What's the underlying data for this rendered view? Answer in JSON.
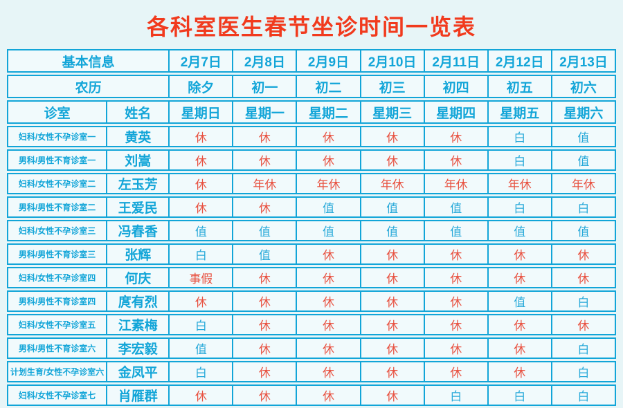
{
  "title": "各科室医生春节坐诊时间一览表",
  "table": {
    "header": {
      "basic_info_label": "基本信息",
      "lunar_label": "农历",
      "room_label": "诊室",
      "name_label": "姓名",
      "dates": [
        "2月7日",
        "2月8日",
        "2月9日",
        "2月10日",
        "2月11日",
        "2月12日",
        "2月13日"
      ],
      "lunar_days": [
        "除夕",
        "初一",
        "初二",
        "初三",
        "初四",
        "初五",
        "初六"
      ],
      "weekdays": [
        "星期日",
        "星期一",
        "星期二",
        "星期三",
        "星期四",
        "星期五",
        "星期六"
      ]
    },
    "rows": [
      {
        "room": "妇科/女性不孕诊室一",
        "name": "黄英",
        "schedule": [
          {
            "text": "休",
            "color": "red"
          },
          {
            "text": "休",
            "color": "red"
          },
          {
            "text": "休",
            "color": "red"
          },
          {
            "text": "休",
            "color": "red"
          },
          {
            "text": "休",
            "color": "red"
          },
          {
            "text": "白",
            "color": "blue"
          },
          {
            "text": "值",
            "color": "blue"
          }
        ]
      },
      {
        "room": "男科/男性不育诊室一",
        "name": "刘嵩",
        "schedule": [
          {
            "text": "休",
            "color": "red"
          },
          {
            "text": "休",
            "color": "red"
          },
          {
            "text": "休",
            "color": "red"
          },
          {
            "text": "休",
            "color": "red"
          },
          {
            "text": "休",
            "color": "red"
          },
          {
            "text": "白",
            "color": "blue"
          },
          {
            "text": "值",
            "color": "blue"
          }
        ]
      },
      {
        "room": "妇科/女性不孕诊室二",
        "name": "左玉芳",
        "schedule": [
          {
            "text": "休",
            "color": "red"
          },
          {
            "text": "年休",
            "color": "red"
          },
          {
            "text": "年休",
            "color": "red"
          },
          {
            "text": "年休",
            "color": "red"
          },
          {
            "text": "年休",
            "color": "red"
          },
          {
            "text": "年休",
            "color": "red"
          },
          {
            "text": "年休",
            "color": "red"
          }
        ]
      },
      {
        "room": "男科/男性不育诊室二",
        "name": "王爱民",
        "schedule": [
          {
            "text": "休",
            "color": "red"
          },
          {
            "text": "休",
            "color": "red"
          },
          {
            "text": "值",
            "color": "blue"
          },
          {
            "text": "值",
            "color": "blue"
          },
          {
            "text": "值",
            "color": "blue"
          },
          {
            "text": "白",
            "color": "blue"
          },
          {
            "text": "白",
            "color": "blue"
          }
        ]
      },
      {
        "room": "妇科/女性不孕诊室三",
        "name": "冯春香",
        "schedule": [
          {
            "text": "值",
            "color": "blue"
          },
          {
            "text": "值",
            "color": "blue"
          },
          {
            "text": "值",
            "color": "blue"
          },
          {
            "text": "值",
            "color": "blue"
          },
          {
            "text": "值",
            "color": "blue"
          },
          {
            "text": "值",
            "color": "blue"
          },
          {
            "text": "值",
            "color": "blue"
          }
        ]
      },
      {
        "room": "男科/男性不育诊室三",
        "name": "张辉",
        "schedule": [
          {
            "text": "白",
            "color": "blue"
          },
          {
            "text": "值",
            "color": "blue"
          },
          {
            "text": "休",
            "color": "red"
          },
          {
            "text": "休",
            "color": "red"
          },
          {
            "text": "休",
            "color": "red"
          },
          {
            "text": "休",
            "color": "red"
          },
          {
            "text": "休",
            "color": "red"
          }
        ]
      },
      {
        "room": "妇科/女性不孕诊室四",
        "name": "何庆",
        "schedule": [
          {
            "text": "事假",
            "color": "red"
          },
          {
            "text": "休",
            "color": "red"
          },
          {
            "text": "休",
            "color": "red"
          },
          {
            "text": "休",
            "color": "red"
          },
          {
            "text": "休",
            "color": "red"
          },
          {
            "text": "休",
            "color": "red"
          },
          {
            "text": "休",
            "color": "red"
          }
        ]
      },
      {
        "room": "男科/男性不育诊室四",
        "name": "庹有烈",
        "schedule": [
          {
            "text": "休",
            "color": "red"
          },
          {
            "text": "休",
            "color": "red"
          },
          {
            "text": "休",
            "color": "red"
          },
          {
            "text": "休",
            "color": "red"
          },
          {
            "text": "休",
            "color": "red"
          },
          {
            "text": "值",
            "color": "blue"
          },
          {
            "text": "白",
            "color": "blue"
          }
        ]
      },
      {
        "room": "妇科/女性不孕诊室五",
        "name": "江素梅",
        "schedule": [
          {
            "text": "白",
            "color": "blue"
          },
          {
            "text": "休",
            "color": "red"
          },
          {
            "text": "休",
            "color": "red"
          },
          {
            "text": "休",
            "color": "red"
          },
          {
            "text": "休",
            "color": "red"
          },
          {
            "text": "休",
            "color": "red"
          },
          {
            "text": "休",
            "color": "red"
          }
        ]
      },
      {
        "room": "男科/男性不育诊室六",
        "name": "李宏毅",
        "schedule": [
          {
            "text": "值",
            "color": "blue"
          },
          {
            "text": "休",
            "color": "red"
          },
          {
            "text": "休",
            "color": "red"
          },
          {
            "text": "休",
            "color": "red"
          },
          {
            "text": "休",
            "color": "red"
          },
          {
            "text": "休",
            "color": "red"
          },
          {
            "text": "白",
            "color": "blue"
          }
        ]
      },
      {
        "room": "计划生育/女性不孕诊室六",
        "name": "金凤平",
        "schedule": [
          {
            "text": "白",
            "color": "blue"
          },
          {
            "text": "休",
            "color": "red"
          },
          {
            "text": "休",
            "color": "red"
          },
          {
            "text": "休",
            "color": "red"
          },
          {
            "text": "休",
            "color": "red"
          },
          {
            "text": "休",
            "color": "red"
          },
          {
            "text": "白",
            "color": "blue"
          }
        ]
      },
      {
        "room": "妇科/女性不孕诊室七",
        "name": "肖雁群",
        "schedule": [
          {
            "text": "休",
            "color": "red"
          },
          {
            "text": "休",
            "color": "red"
          },
          {
            "text": "休",
            "color": "red"
          },
          {
            "text": "休",
            "color": "red"
          },
          {
            "text": "白",
            "color": "blue"
          },
          {
            "text": "白",
            "color": "blue"
          },
          {
            "text": "白",
            "color": "blue"
          }
        ]
      }
    ]
  },
  "colors": {
    "accent": "#12a5d8",
    "title_red": "#f13a1d",
    "off_red": "#e85140",
    "duty_blue": "#28a9d9",
    "page_bg": "#e7f5f7",
    "cell_bg": "#f1fafc"
  }
}
